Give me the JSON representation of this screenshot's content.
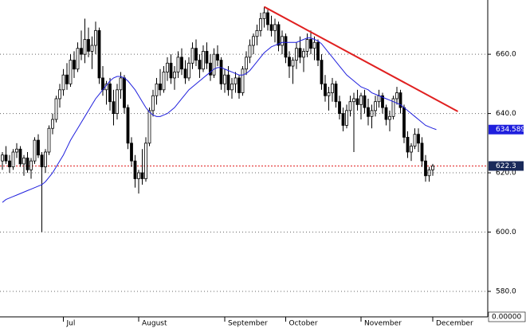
{
  "chart_data": {
    "type": "candlestick",
    "candles": [
      [
        624,
        627,
        621,
        626
      ],
      [
        626,
        629,
        623,
        624
      ],
      [
        624,
        626,
        620,
        622
      ],
      [
        622,
        628,
        621,
        627
      ],
      [
        627,
        630,
        625,
        628
      ],
      [
        628,
        629,
        622,
        623
      ],
      [
        623,
        626,
        619,
        625
      ],
      [
        625,
        627,
        620,
        621
      ],
      [
        621,
        625,
        618,
        624
      ],
      [
        624,
        632,
        623,
        631
      ],
      [
        631,
        633,
        625,
        626
      ],
      [
        626,
        627,
        600,
        622
      ],
      [
        622,
        628,
        620,
        627
      ],
      [
        627,
        636,
        626,
        635
      ],
      [
        635,
        640,
        633,
        638
      ],
      [
        638,
        646,
        637,
        645
      ],
      [
        645,
        650,
        642,
        648
      ],
      [
        648,
        655,
        646,
        653
      ],
      [
        653,
        657,
        648,
        650
      ],
      [
        650,
        660,
        649,
        658
      ],
      [
        658,
        661,
        652,
        655
      ],
      [
        655,
        664,
        654,
        662
      ],
      [
        662,
        668,
        658,
        660
      ],
      [
        660,
        672,
        657,
        665
      ],
      [
        665,
        669,
        659,
        661
      ],
      [
        661,
        666,
        655,
        663
      ],
      [
        663,
        671,
        660,
        668
      ],
      [
        668,
        669,
        650,
        652
      ],
      [
        652,
        656,
        646,
        648
      ],
      [
        648,
        651,
        643,
        650
      ],
      [
        650,
        652,
        641,
        644
      ],
      [
        644,
        648,
        636,
        640
      ],
      [
        640,
        650,
        638,
        648
      ],
      [
        648,
        654,
        645,
        652
      ],
      [
        652,
        653,
        640,
        642
      ],
      [
        642,
        643,
        628,
        630
      ],
      [
        630,
        632,
        622,
        624
      ],
      [
        624,
        626,
        615,
        618
      ],
      [
        618,
        621,
        613,
        620
      ],
      [
        620,
        628,
        616,
        618
      ],
      [
        618,
        632,
        617,
        630
      ],
      [
        630,
        642,
        629,
        641
      ],
      [
        641,
        648,
        639,
        646
      ],
      [
        646,
        652,
        643,
        650
      ],
      [
        650,
        655,
        646,
        648
      ],
      [
        648,
        656,
        647,
        654
      ],
      [
        654,
        659,
        651,
        657
      ],
      [
        657,
        660,
        650,
        652
      ],
      [
        652,
        656,
        648,
        654
      ],
      [
        654,
        661,
        652,
        659
      ],
      [
        659,
        662,
        653,
        655
      ],
      [
        655,
        658,
        650,
        652
      ],
      [
        652,
        659,
        651,
        657
      ],
      [
        657,
        664,
        655,
        662
      ],
      [
        662,
        665,
        656,
        658
      ],
      [
        658,
        660,
        652,
        655
      ],
      [
        655,
        663,
        654,
        661
      ],
      [
        661,
        664,
        655,
        657
      ],
      [
        657,
        660,
        651,
        653
      ],
      [
        653,
        662,
        652,
        660
      ],
      [
        660,
        663,
        656,
        658
      ],
      [
        658,
        659,
        648,
        650
      ],
      [
        650,
        655,
        647,
        653
      ],
      [
        653,
        656,
        646,
        648
      ],
      [
        648,
        652,
        645,
        650
      ],
      [
        650,
        654,
        647,
        652
      ],
      [
        652,
        653,
        645,
        647
      ],
      [
        647,
        656,
        646,
        655
      ],
      [
        655,
        661,
        653,
        659
      ],
      [
        659,
        665,
        657,
        663
      ],
      [
        663,
        667,
        660,
        666
      ],
      [
        666,
        670,
        663,
        668
      ],
      [
        668,
        674,
        666,
        672
      ],
      [
        672,
        676,
        669,
        674
      ],
      [
        674,
        675,
        668,
        670
      ],
      [
        670,
        673,
        666,
        668
      ],
      [
        668,
        672,
        664,
        670
      ],
      [
        670,
        671,
        661,
        663
      ],
      [
        663,
        668,
        660,
        666
      ],
      [
        666,
        667,
        657,
        659
      ],
      [
        659,
        661,
        652,
        656
      ],
      [
        656,
        659,
        650,
        658
      ],
      [
        658,
        664,
        655,
        662
      ],
      [
        662,
        666,
        657,
        659
      ],
      [
        659,
        662,
        654,
        661
      ],
      [
        661,
        667,
        659,
        665
      ],
      [
        665,
        668,
        660,
        662
      ],
      [
        662,
        666,
        658,
        664
      ],
      [
        664,
        665,
        656,
        658
      ],
      [
        658,
        660,
        648,
        650
      ],
      [
        650,
        653,
        644,
        646
      ],
      [
        646,
        649,
        641,
        647
      ],
      [
        647,
        652,
        644,
        650
      ],
      [
        650,
        651,
        642,
        644
      ],
      [
        644,
        646,
        638,
        640
      ],
      [
        640,
        642,
        634,
        636
      ],
      [
        636,
        643,
        635,
        641
      ],
      [
        641,
        646,
        639,
        644
      ],
      [
        644,
        647,
        627,
        645
      ],
      [
        645,
        648,
        641,
        643
      ],
      [
        643,
        647,
        638,
        646
      ],
      [
        646,
        648,
        640,
        642
      ],
      [
        642,
        645,
        636,
        639
      ],
      [
        639,
        643,
        635,
        641
      ],
      [
        641,
        646,
        639,
        644
      ],
      [
        644,
        648,
        642,
        646
      ],
      [
        646,
        647,
        640,
        642
      ],
      [
        642,
        643,
        636,
        638
      ],
      [
        638,
        641,
        634,
        639
      ],
      [
        639,
        646,
        638,
        645
      ],
      [
        645,
        649,
        643,
        647
      ],
      [
        647,
        648,
        640,
        642
      ],
      [
        642,
        643,
        630,
        632
      ],
      [
        632,
        634,
        625,
        627
      ],
      [
        627,
        630,
        624,
        629
      ],
      [
        629,
        635,
        628,
        633
      ],
      [
        633,
        635,
        627,
        630
      ],
      [
        630,
        632,
        622,
        624
      ],
      [
        624,
        626,
        617,
        619
      ],
      [
        619,
        622,
        617,
        621
      ],
      [
        621,
        623,
        619,
        622.3
      ]
    ],
    "candle_color": "#000000",
    "ma": {
      "color": "#1f1fdd",
      "values": [
        610,
        611,
        611.5,
        612,
        612.5,
        613,
        613.5,
        614,
        614.5,
        615,
        615.5,
        616,
        617,
        618.5,
        620,
        622,
        624,
        626,
        628.5,
        631,
        633,
        635,
        637,
        639,
        641,
        643,
        645,
        646.5,
        648,
        649.5,
        651,
        652,
        652.5,
        652.5,
        652,
        651,
        649.5,
        648,
        646,
        644,
        642,
        640.5,
        639.5,
        639,
        639,
        639.5,
        640,
        641,
        642,
        643.5,
        645,
        646.5,
        648,
        649,
        650,
        651,
        652,
        653,
        654,
        655,
        655.5,
        655.5,
        655,
        654.5,
        654,
        653.5,
        653,
        653,
        653.5,
        654.5,
        656,
        657.5,
        659,
        660.5,
        661.5,
        662.5,
        663,
        663.5,
        664,
        664,
        664,
        664,
        664,
        664.5,
        665,
        665.5,
        665.5,
        665,
        664.5,
        663.5,
        662,
        660.5,
        659,
        657.5,
        656,
        654.5,
        653,
        652,
        651,
        650,
        649,
        648.5,
        648,
        647,
        646.5,
        646,
        645.5,
        645,
        644.5,
        644,
        643.5,
        643,
        642,
        641,
        640,
        639,
        638,
        637,
        636,
        635.5,
        635,
        634.589
      ]
    },
    "trendline": {
      "color": "#e02020",
      "x": [
        73,
        127
      ],
      "y": [
        676,
        640.7
      ]
    },
    "level_line": {
      "color": "#e02020",
      "value": 622.3
    },
    "xlim": [
      -0.667,
      135.333
    ],
    "xticks": [
      {
        "value": 17,
        "label": "Jul"
      },
      {
        "value": 38,
        "label": "August"
      },
      {
        "value": 62,
        "label": "September"
      },
      {
        "value": 79,
        "label": "October"
      },
      {
        "value": 100,
        "label": "November"
      },
      {
        "value": 120,
        "label": "December"
      }
    ],
    "ylim": [
      571.4,
      678.3
    ],
    "yticks": [
      {
        "value": 580,
        "label": "580.0"
      },
      {
        "value": 600,
        "label": "600.0"
      },
      {
        "value": 620,
        "label": "620.0"
      },
      {
        "value": 640,
        "label": "640.0"
      },
      {
        "value": 660,
        "label": "660.0"
      }
    ],
    "axis_corner_label": "0.00000",
    "grid": true
  }
}
